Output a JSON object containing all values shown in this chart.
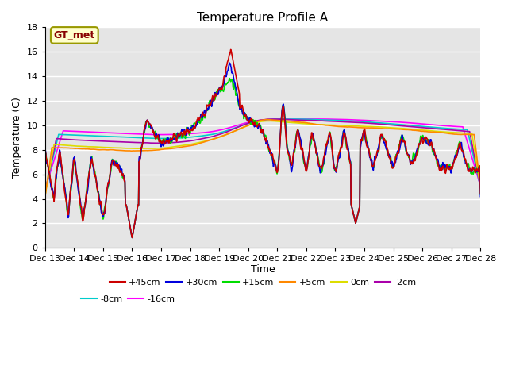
{
  "title": "Temperature Profile A",
  "xlabel": "Time",
  "ylabel": "Temperature (C)",
  "ylim": [
    0,
    18
  ],
  "series_colors": {
    "+45cm": "#cc0000",
    "+30cm": "#0000dd",
    "+15cm": "#00dd00",
    "+5cm": "#ff8800",
    "0cm": "#dddd00",
    "-2cm": "#aa00aa",
    "-8cm": "#00cccc",
    "-16cm": "#ff00ff"
  },
  "annotation_text": "GT_met",
  "background_color": "#e5e5e5",
  "title_fontsize": 11,
  "lw": 1.2
}
